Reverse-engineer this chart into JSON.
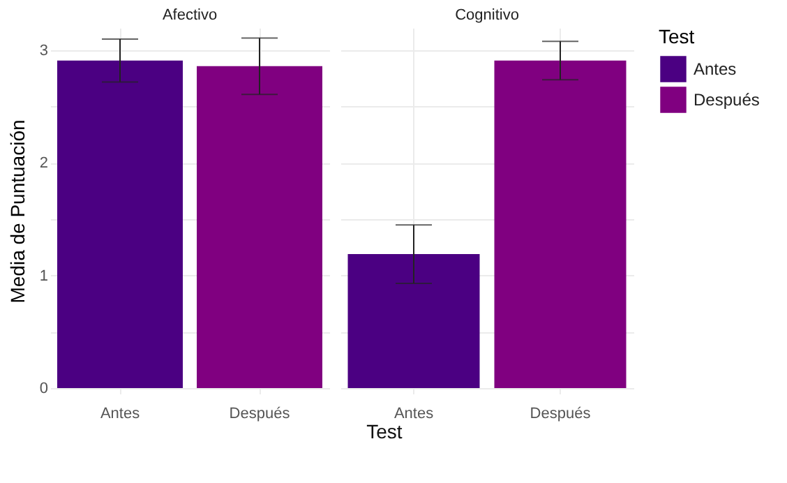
{
  "chart_data": [
    {
      "type": "bar",
      "title": "Afectivo",
      "ylabel": "Media de Puntuación",
      "xlabel": "Test",
      "legend_title": "Test",
      "legend": "right",
      "grid": true,
      "categories": [
        "Antes",
        "Después"
      ],
      "ylim": [
        -0.05,
        3.2
      ],
      "yticks": [
        0,
        {
          "value": 0.5,
          "label": null
        },
        1,
        {
          "value": 1.5,
          "label": null
        },
        2,
        {
          "value": 2.5,
          "label": null
        },
        3
      ],
      "series": [
        {
          "name": "Antes",
          "color": "#4b0082",
          "values": [
            2.91,
            null
          ],
          "errors": [
            0.19,
            null
          ]
        },
        {
          "name": "Después",
          "color": "#800080",
          "values": [
            null,
            2.86
          ],
          "errors": [
            null,
            0.25
          ]
        }
      ]
    },
    {
      "type": "bar",
      "title": "Cognitivo",
      "grid": true,
      "tick_labels": "x",
      "categories": [
        "Antes",
        "Después"
      ],
      "ylim": [
        -0.05,
        3.2
      ],
      "yticks": [
        0,
        {
          "value": 0.5,
          "label": null
        },
        1,
        {
          "value": 1.5,
          "label": null
        },
        2,
        {
          "value": 2.5,
          "label": null
        },
        3
      ],
      "series": [
        {
          "color": "#4b0082",
          "values": [
            1.19,
            null
          ],
          "errors": [
            0.26,
            null
          ]
        },
        {
          "color": "#800080",
          "values": [
            null,
            2.91
          ],
          "errors": [
            null,
            0.17
          ]
        }
      ]
    }
  ]
}
